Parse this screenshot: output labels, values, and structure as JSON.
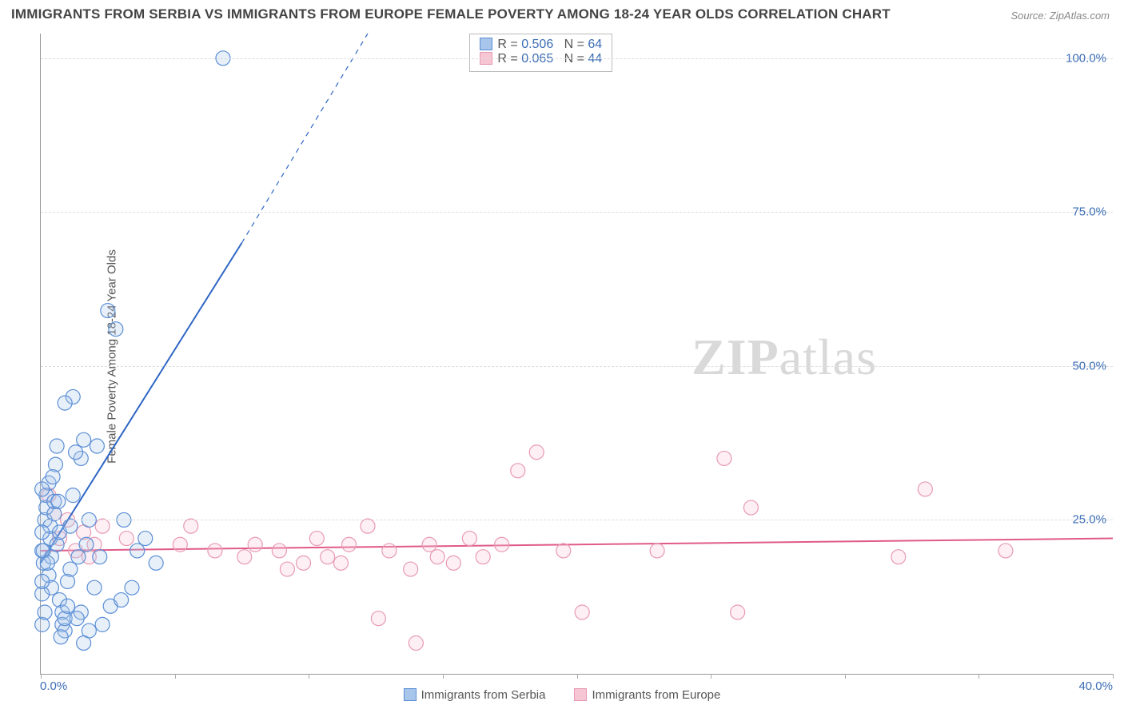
{
  "title": "IMMIGRANTS FROM SERBIA VS IMMIGRANTS FROM EUROPE FEMALE POVERTY AMONG 18-24 YEAR OLDS CORRELATION CHART",
  "source": "Source: ZipAtlas.com",
  "ylabel": "Female Poverty Among 18-24 Year Olds",
  "watermark_bold": "ZIP",
  "watermark_thin": "atlas",
  "chart": {
    "type": "scatter",
    "background_color": "#ffffff",
    "grid_color": "#dddddd",
    "axis_color": "#999999",
    "tick_label_color": "#3b6db5",
    "xlim": [
      0,
      40
    ],
    "ylim": [
      0,
      104
    ],
    "xticks": [
      0,
      5,
      10,
      15,
      20,
      25,
      30,
      35,
      40
    ],
    "xtick_labels_shown": {
      "0": "0.0%",
      "40": "40.0%"
    },
    "yticks": [
      25,
      50,
      75,
      100
    ],
    "ytick_labels": [
      "25.0%",
      "50.0%",
      "75.0%",
      "100.0%"
    ],
    "marker_radius": 9,
    "marker_fill_opacity": 0.28,
    "marker_stroke_width": 1.2,
    "line_width": 2,
    "series": [
      {
        "name": "Immigrants from Serbia",
        "color_stroke": "#5b8fd6",
        "color_fill": "#a8c5eb",
        "trend_color": "#2e66c4",
        "R": "0.506",
        "N": "64",
        "trend": {
          "x1": 0,
          "y1": 18,
          "x2": 7.5,
          "y2": 70,
          "dash_to_x": 12.2,
          "dash_to_y": 104
        },
        "points": [
          [
            0.1,
            18
          ],
          [
            0.1,
            20
          ],
          [
            0.15,
            25
          ],
          [
            0.2,
            27
          ],
          [
            0.2,
            29
          ],
          [
            0.3,
            31
          ],
          [
            0.3,
            16
          ],
          [
            0.35,
            22
          ],
          [
            0.35,
            24
          ],
          [
            0.4,
            14
          ],
          [
            0.4,
            19
          ],
          [
            0.5,
            26
          ],
          [
            0.5,
            28
          ],
          [
            0.55,
            34
          ],
          [
            0.6,
            37
          ],
          [
            0.6,
            21
          ],
          [
            0.7,
            23
          ],
          [
            0.7,
            12
          ],
          [
            0.8,
            10
          ],
          [
            0.8,
            8
          ],
          [
            0.9,
            7
          ],
          [
            0.9,
            9
          ],
          [
            1.0,
            11
          ],
          [
            1.0,
            15
          ],
          [
            1.1,
            17
          ],
          [
            1.1,
            24
          ],
          [
            1.2,
            29
          ],
          [
            1.2,
            45
          ],
          [
            1.4,
            19
          ],
          [
            1.5,
            35
          ],
          [
            1.5,
            10
          ],
          [
            1.6,
            38
          ],
          [
            1.7,
            21
          ],
          [
            1.8,
            25
          ],
          [
            1.8,
            7
          ],
          [
            2.0,
            14
          ],
          [
            2.1,
            37
          ],
          [
            2.2,
            19
          ],
          [
            2.3,
            8
          ],
          [
            2.5,
            59
          ],
          [
            2.8,
            56
          ],
          [
            3.1,
            25
          ],
          [
            3.4,
            14
          ],
          [
            3.6,
            20
          ],
          [
            3.9,
            22
          ],
          [
            4.3,
            18
          ],
          [
            6.8,
            100
          ],
          [
            0.05,
            20
          ],
          [
            0.05,
            23
          ],
          [
            0.05,
            30
          ],
          [
            0.05,
            13
          ],
          [
            0.05,
            15
          ],
          [
            0.05,
            8
          ],
          [
            0.45,
            32
          ],
          [
            0.65,
            28
          ],
          [
            0.75,
            6
          ],
          [
            1.3,
            36
          ],
          [
            1.35,
            9
          ],
          [
            1.6,
            5
          ],
          [
            2.6,
            11
          ],
          [
            3.0,
            12
          ],
          [
            0.9,
            44
          ],
          [
            0.25,
            18
          ],
          [
            0.15,
            10
          ]
        ]
      },
      {
        "name": "Immigrants from Europe",
        "color_stroke": "#e89ab2",
        "color_fill": "#f7c6d5",
        "trend_color": "#e05a8a",
        "R": "0.065",
        "N": "44",
        "trend": {
          "x1": 0,
          "y1": 20,
          "x2": 40,
          "y2": 22
        },
        "points": [
          [
            0.3,
            29
          ],
          [
            0.5,
            26
          ],
          [
            0.7,
            22
          ],
          [
            1.0,
            25
          ],
          [
            1.3,
            20
          ],
          [
            1.6,
            23
          ],
          [
            2.0,
            21
          ],
          [
            2.3,
            24
          ],
          [
            5.2,
            21
          ],
          [
            5.6,
            24
          ],
          [
            6.5,
            20
          ],
          [
            7.6,
            19
          ],
          [
            8.0,
            21
          ],
          [
            8.9,
            20
          ],
          [
            9.2,
            17
          ],
          [
            9.8,
            18
          ],
          [
            10.3,
            22
          ],
          [
            10.7,
            19
          ],
          [
            11.2,
            18
          ],
          [
            11.5,
            21
          ],
          [
            12.2,
            24
          ],
          [
            12.6,
            9
          ],
          [
            13.0,
            20
          ],
          [
            13.8,
            17
          ],
          [
            14.0,
            5
          ],
          [
            14.5,
            21
          ],
          [
            14.8,
            19
          ],
          [
            15.4,
            18
          ],
          [
            16.0,
            22
          ],
          [
            16.5,
            19
          ],
          [
            17.2,
            21
          ],
          [
            17.8,
            33
          ],
          [
            18.5,
            36
          ],
          [
            19.5,
            20
          ],
          [
            20.2,
            10
          ],
          [
            23.0,
            20
          ],
          [
            25.5,
            35
          ],
          [
            26.0,
            10
          ],
          [
            26.5,
            27
          ],
          [
            32.0,
            19
          ],
          [
            33.0,
            30
          ],
          [
            36.0,
            20
          ],
          [
            1.8,
            19
          ],
          [
            3.2,
            22
          ]
        ]
      }
    ],
    "bottom_legend": [
      {
        "label": "Immigrants from Serbia",
        "fill": "#a8c5eb",
        "stroke": "#5b8fd6"
      },
      {
        "label": "Immigrants from Europe",
        "fill": "#f7c6d5",
        "stroke": "#e89ab2"
      }
    ]
  }
}
